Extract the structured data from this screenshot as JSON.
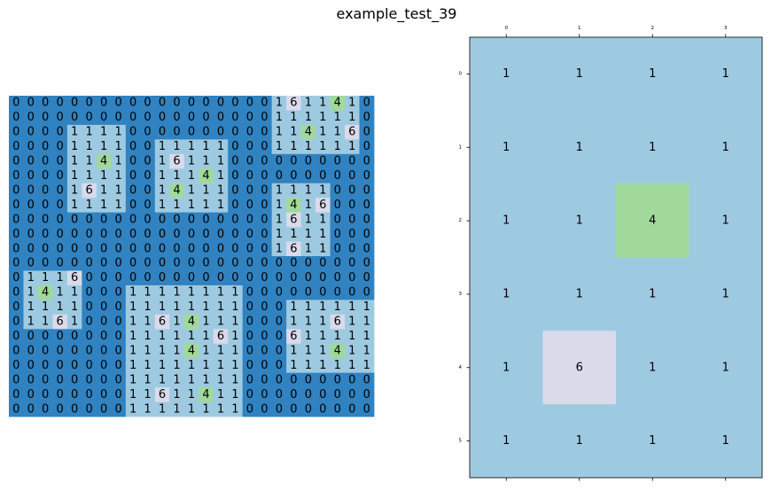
{
  "figure": {
    "title": "example_test_39"
  },
  "colors": {
    "0": "#3082c0",
    "1": "#9ecae1",
    "4": "#a1d99b",
    "6": "#dadaeb",
    "text": "#000000"
  },
  "chart_data": [
    {
      "type": "heatmap",
      "title": "",
      "show_values": true,
      "show_axes": false,
      "grid": false,
      "rows": [
        [
          0,
          0,
          0,
          0,
          0,
          0,
          0,
          0,
          0,
          0,
          0,
          0,
          0,
          0,
          0,
          0,
          0,
          0,
          1,
          6,
          1,
          1,
          4,
          1,
          0
        ],
        [
          0,
          0,
          0,
          0,
          0,
          0,
          0,
          0,
          0,
          0,
          0,
          0,
          0,
          0,
          0,
          0,
          0,
          0,
          1,
          1,
          1,
          1,
          1,
          1,
          0
        ],
        [
          0,
          0,
          0,
          0,
          1,
          1,
          1,
          1,
          0,
          0,
          0,
          0,
          0,
          0,
          0,
          0,
          0,
          0,
          1,
          1,
          4,
          1,
          1,
          6,
          0
        ],
        [
          0,
          0,
          0,
          0,
          1,
          1,
          1,
          1,
          0,
          0,
          1,
          1,
          1,
          1,
          1,
          0,
          0,
          0,
          1,
          1,
          1,
          1,
          1,
          1,
          0
        ],
        [
          0,
          0,
          0,
          0,
          1,
          1,
          4,
          1,
          0,
          0,
          1,
          6,
          1,
          1,
          1,
          0,
          0,
          0,
          0,
          0,
          0,
          0,
          0,
          0,
          0
        ],
        [
          0,
          0,
          0,
          0,
          1,
          1,
          1,
          1,
          0,
          0,
          1,
          1,
          1,
          4,
          1,
          0,
          0,
          0,
          0,
          0,
          0,
          0,
          0,
          0,
          0
        ],
        [
          0,
          0,
          0,
          0,
          1,
          6,
          1,
          1,
          0,
          0,
          1,
          4,
          1,
          1,
          1,
          0,
          0,
          0,
          1,
          1,
          1,
          1,
          0,
          0,
          0
        ],
        [
          0,
          0,
          0,
          0,
          1,
          1,
          1,
          1,
          0,
          0,
          1,
          1,
          1,
          1,
          1,
          0,
          0,
          0,
          1,
          4,
          1,
          6,
          0,
          0,
          0
        ],
        [
          0,
          0,
          0,
          0,
          0,
          0,
          0,
          0,
          0,
          0,
          0,
          0,
          0,
          0,
          0,
          0,
          0,
          0,
          1,
          6,
          1,
          1,
          0,
          0,
          0
        ],
        [
          0,
          0,
          0,
          0,
          0,
          0,
          0,
          0,
          0,
          0,
          0,
          0,
          0,
          0,
          0,
          0,
          0,
          0,
          1,
          1,
          1,
          1,
          0,
          0,
          0
        ],
        [
          0,
          0,
          0,
          0,
          0,
          0,
          0,
          0,
          0,
          0,
          0,
          0,
          0,
          0,
          0,
          0,
          0,
          0,
          1,
          6,
          1,
          1,
          0,
          0,
          0
        ],
        [
          0,
          0,
          0,
          0,
          0,
          0,
          0,
          0,
          0,
          0,
          0,
          0,
          0,
          0,
          0,
          0,
          0,
          0,
          0,
          0,
          0,
          0,
          0,
          0,
          0
        ],
        [
          0,
          1,
          1,
          1,
          6,
          0,
          0,
          0,
          0,
          0,
          0,
          0,
          0,
          0,
          0,
          0,
          0,
          0,
          0,
          0,
          0,
          0,
          0,
          0,
          0
        ],
        [
          0,
          1,
          4,
          1,
          1,
          0,
          0,
          0,
          1,
          1,
          1,
          1,
          1,
          1,
          1,
          1,
          0,
          0,
          0,
          0,
          0,
          0,
          0,
          0,
          0
        ],
        [
          0,
          1,
          1,
          1,
          1,
          0,
          0,
          0,
          1,
          1,
          1,
          1,
          1,
          1,
          1,
          1,
          0,
          0,
          0,
          1,
          1,
          1,
          1,
          1,
          1
        ],
        [
          0,
          1,
          1,
          6,
          1,
          0,
          0,
          0,
          1,
          1,
          6,
          1,
          4,
          1,
          1,
          1,
          0,
          0,
          0,
          1,
          1,
          1,
          6,
          1,
          1
        ],
        [
          0,
          0,
          0,
          0,
          0,
          0,
          0,
          0,
          1,
          1,
          1,
          1,
          1,
          1,
          6,
          1,
          0,
          0,
          0,
          6,
          1,
          1,
          1,
          1,
          1
        ],
        [
          0,
          0,
          0,
          0,
          0,
          0,
          0,
          0,
          1,
          1,
          1,
          1,
          4,
          1,
          1,
          1,
          0,
          0,
          0,
          1,
          1,
          1,
          4,
          1,
          1
        ],
        [
          0,
          0,
          0,
          0,
          0,
          0,
          0,
          0,
          1,
          1,
          1,
          1,
          1,
          1,
          1,
          1,
          0,
          0,
          0,
          1,
          1,
          1,
          1,
          1,
          1
        ],
        [
          0,
          0,
          0,
          0,
          0,
          0,
          0,
          0,
          1,
          1,
          1,
          1,
          1,
          1,
          1,
          1,
          0,
          0,
          0,
          0,
          0,
          0,
          0,
          0,
          0
        ],
        [
          0,
          0,
          0,
          0,
          0,
          0,
          0,
          0,
          1,
          1,
          6,
          1,
          1,
          4,
          1,
          1,
          0,
          0,
          0,
          0,
          0,
          0,
          0,
          0,
          0
        ],
        [
          0,
          0,
          0,
          0,
          0,
          0,
          0,
          0,
          1,
          1,
          1,
          1,
          1,
          1,
          1,
          1,
          0,
          0,
          0,
          0,
          0,
          0,
          0,
          0,
          0
        ]
      ]
    },
    {
      "type": "heatmap",
      "title": "",
      "show_values": true,
      "show_axes": true,
      "grid": false,
      "x_ticks": [
        "0",
        "1",
        "2",
        "3"
      ],
      "y_ticks": [
        "0",
        "1",
        "2",
        "3",
        "4",
        "5"
      ],
      "x_tick_position": "top",
      "rows": [
        [
          1,
          1,
          1,
          1
        ],
        [
          1,
          1,
          1,
          1
        ],
        [
          1,
          1,
          4,
          1
        ],
        [
          1,
          1,
          1,
          1
        ],
        [
          1,
          6,
          1,
          1
        ],
        [
          1,
          1,
          1,
          1
        ]
      ]
    }
  ]
}
